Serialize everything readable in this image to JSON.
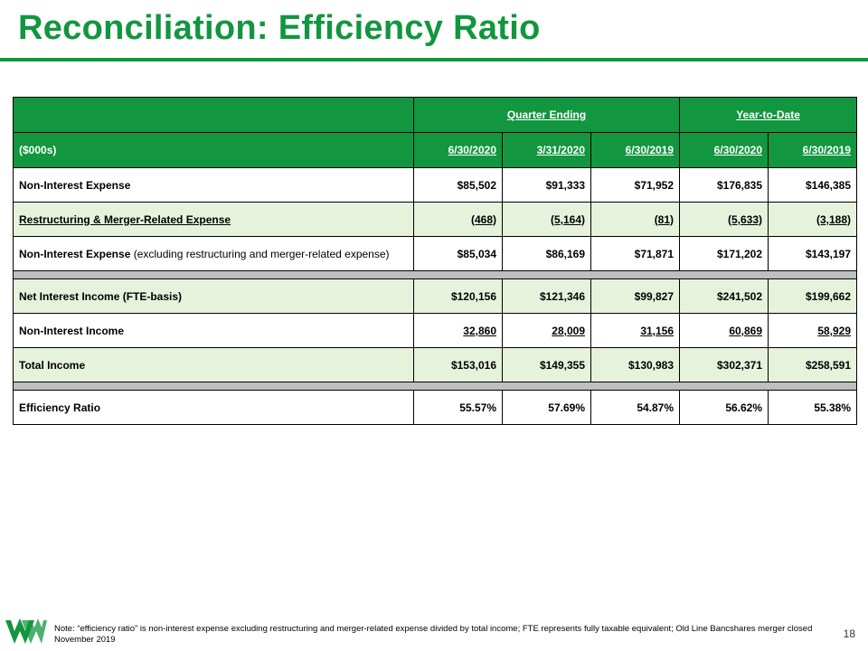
{
  "title": "Reconciliation: Efficiency Ratio",
  "table": {
    "group_headers": {
      "quarter": "Quarter Ending",
      "ytd": "Year-to-Date"
    },
    "unit_label": "($000s)",
    "columns": [
      "6/30/2020",
      "3/31/2020",
      "6/30/2019",
      "6/30/2020",
      "6/30/2019"
    ],
    "rows": [
      {
        "label": "Non-Interest Expense",
        "values": [
          "$85,502",
          "$91,333",
          "$71,952",
          "$176,835",
          "$146,385"
        ]
      },
      {
        "label": "Restructuring & Merger-Related Expense",
        "values": [
          "(468)",
          "(5,164)",
          "(81)",
          "(5,633)",
          "(3,188)"
        ]
      },
      {
        "label": "Non-Interest Expense",
        "label_note": " (excluding restructuring and merger-related expense)",
        "values": [
          "$85,034",
          "$86,169",
          "$71,871",
          "$171,202",
          "$143,197"
        ]
      },
      {
        "label": "Net Interest Income (FTE-basis)",
        "values": [
          "$120,156",
          "$121,346",
          "$99,827",
          "$241,502",
          "$199,662"
        ]
      },
      {
        "label": "Non-Interest Income",
        "values": [
          "32,860",
          "28,009",
          "31,156",
          "60,869",
          "58,929"
        ]
      },
      {
        "label": "Total Income",
        "values": [
          "$153,016",
          "$149,355",
          "$130,983",
          "$302,371",
          "$258,591"
        ]
      },
      {
        "label": "Efficiency Ratio",
        "values": [
          "55.57%",
          "57.69%",
          "54.87%",
          "56.62%",
          "55.38%"
        ]
      }
    ]
  },
  "note": "Note: “efficiency ratio” is non-interest expense excluding restructuring and merger-related expense divided by total income; FTE  represents fully taxable equivalent; Old Line Bancshares merger closed November 2019",
  "page_number": "18",
  "colors": {
    "brand_green": "#12963f",
    "row_shade": "#e6f2dc",
    "separator": "#bfbfbf"
  },
  "logo_icon": "wesbanco-w-logo-icon"
}
